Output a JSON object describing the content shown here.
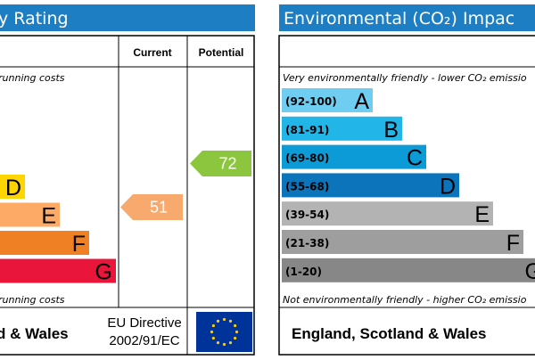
{
  "energy_panel": {
    "title": "y Rating",
    "columns": [
      "Current",
      "Potential"
    ],
    "top_note": "running costs",
    "bands": [
      {
        "letter": "D"
      },
      {
        "letter": "E"
      },
      {
        "letter": "F"
      },
      {
        "letter": "G"
      }
    ],
    "bottom_note": "running costs",
    "footer": "d & Wales",
    "directive": [
      "EU Directive",
      "2002/91/EC"
    ],
    "current": 51,
    "potential": 72
  },
  "environmental_panel": {
    "title": "Environmental (CO₂) Impac",
    "top_note": "Very environmentally friendly - lower CO₂ emissio",
    "bands": [
      {
        "range": "(92-100)",
        "letter": "A"
      },
      {
        "range": "(81-91)",
        "letter": "B"
      },
      {
        "range": "(69-80)",
        "letter": "C"
      },
      {
        "range": "(55-68)",
        "letter": "D"
      },
      {
        "range": "(39-54)",
        "letter": "E"
      },
      {
        "range": "(21-38)",
        "letter": "F"
      },
      {
        "range": "(1-20)",
        "letter": "G"
      }
    ],
    "bottom_note": "Not environmentally friendly - higher CO₂ emissio",
    "footer": "England, Scotland & Wales"
  }
}
